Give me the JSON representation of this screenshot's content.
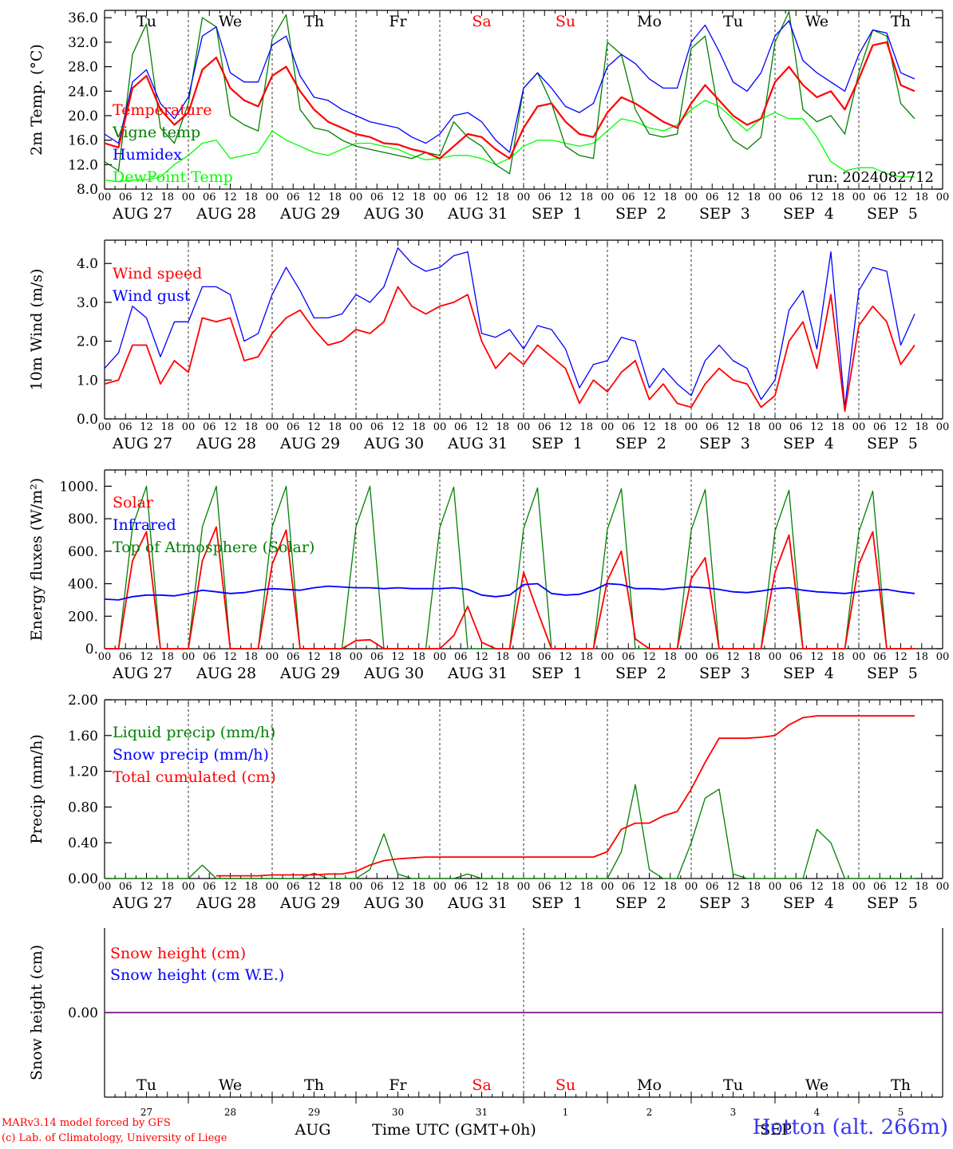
{
  "chart_data": [
    {
      "type": "line",
      "ylabel": "2m Temp. (°C)",
      "ylim": [
        8,
        37.2
      ],
      "yticks": [
        "8.0",
        "12.0",
        "16.0",
        "20.0",
        "24.0",
        "28.0",
        "32.0",
        "36.0"
      ],
      "hours_start": "2024-08-27 00 UTC",
      "x_step_hours": 6,
      "annotation": "run: 2024082712",
      "series": [
        {
          "name": "Temperature",
          "color": "#ff0000",
          "values": [
            15.5,
            14.8,
            24.5,
            26.5,
            21.0,
            18.5,
            20.5,
            27.5,
            29.5,
            24.5,
            22.5,
            21.5,
            26.5,
            28.0,
            24.0,
            21.0,
            19.0,
            18.0,
            17.0,
            16.5,
            15.5,
            15.3,
            14.5,
            14.0,
            13.0,
            15.0,
            17.0,
            16.5,
            14.5,
            13.0,
            18.0,
            21.5,
            22.0,
            19.0,
            17.0,
            16.5,
            20.5,
            23.0,
            22.0,
            20.5,
            19.0,
            18.0,
            22.0,
            25.0,
            22.5,
            20.0,
            18.5,
            19.5,
            25.5,
            28.0,
            25.0,
            23.0,
            24.0,
            21.0,
            26.0,
            31.5,
            32.0,
            25.0,
            24.0
          ]
        },
        {
          "name": "Vigne temp",
          "color": "#008000",
          "values": [
            12.5,
            11.0,
            30.0,
            35.0,
            18.0,
            15.5,
            22.0,
            36.0,
            34.5,
            20.0,
            18.5,
            17.5,
            32.5,
            36.5,
            21.0,
            18.0,
            17.5,
            16.0,
            15.0,
            14.5,
            14.0,
            13.5,
            13.0,
            14.0,
            13.5,
            19.0,
            16.5,
            15.0,
            12.0,
            10.5,
            24.5,
            27.0,
            22.0,
            15.0,
            13.5,
            13.0,
            32.0,
            30.0,
            21.0,
            17.0,
            16.5,
            17.0,
            31.0,
            33.0,
            20.0,
            16.0,
            14.5,
            16.5,
            32.0,
            37.0,
            21.0,
            19.0,
            20.0,
            17.0,
            27.0,
            34.0,
            33.0,
            22.0,
            19.5
          ]
        },
        {
          "name": "Humidex",
          "color": "#0000ff",
          "values": [
            17.0,
            15.5,
            25.5,
            27.5,
            22.0,
            19.5,
            23.0,
            33.0,
            34.5,
            27.0,
            25.5,
            25.5,
            31.5,
            33.0,
            26.5,
            23.0,
            22.5,
            21.0,
            20.0,
            19.0,
            18.5,
            18.0,
            16.5,
            15.5,
            17.0,
            20.0,
            20.5,
            19.0,
            16.0,
            14.0,
            24.5,
            27.0,
            24.5,
            21.5,
            20.5,
            22.0,
            28.0,
            30.0,
            28.5,
            26.0,
            24.5,
            24.5,
            32.0,
            34.8,
            30.5,
            25.5,
            24.0,
            27.0,
            33.0,
            35.5,
            29.0,
            27.0,
            25.5,
            24.0,
            30.0,
            34.0,
            33.5,
            27.0,
            26.0
          ]
        },
        {
          "name": "DewPoint Temp",
          "color": "#00ff00",
          "values": [
            9.5,
            9.2,
            9.5,
            9.5,
            10.0,
            12.0,
            13.5,
            15.5,
            16.0,
            13.0,
            13.5,
            14.0,
            17.5,
            16.0,
            15.0,
            14.0,
            13.5,
            14.5,
            15.5,
            15.5,
            15.0,
            14.5,
            13.5,
            12.8,
            13.0,
            13.5,
            13.5,
            13.0,
            12.0,
            13.0,
            15.0,
            16.0,
            16.0,
            15.5,
            15.0,
            15.5,
            17.5,
            19.5,
            19.0,
            18.0,
            17.5,
            18.5,
            21.0,
            22.5,
            21.5,
            19.5,
            17.5,
            19.5,
            20.5,
            19.5,
            19.5,
            16.5,
            12.5,
            11.0,
            11.5,
            11.5,
            10.5,
            10.0,
            10.0
          ]
        }
      ]
    },
    {
      "type": "line",
      "ylabel": "10m Wind (m/s)",
      "ylim": [
        0,
        4.6
      ],
      "yticks": [
        "0.0",
        "1.0",
        "2.0",
        "3.0",
        "4.0"
      ],
      "series": [
        {
          "name": "Wind speed",
          "color": "#ff0000",
          "values": [
            0.9,
            1.0,
            1.9,
            1.9,
            0.9,
            1.5,
            1.2,
            2.6,
            2.5,
            2.6,
            1.5,
            1.6,
            2.2,
            2.6,
            2.8,
            2.3,
            1.9,
            2.0,
            2.3,
            2.2,
            2.5,
            3.4,
            2.9,
            2.7,
            2.9,
            3.0,
            3.2,
            2.0,
            1.3,
            1.7,
            1.4,
            1.9,
            1.6,
            1.3,
            0.4,
            1.0,
            0.7,
            1.2,
            1.5,
            0.5,
            0.9,
            0.4,
            0.3,
            0.9,
            1.3,
            1.0,
            0.9,
            0.3,
            0.6,
            2.0,
            2.5,
            1.3,
            3.2,
            0.2,
            2.4,
            2.9,
            2.5,
            1.4,
            1.9
          ]
        },
        {
          "name": "Wind gust",
          "color": "#0000ff",
          "values": [
            1.3,
            1.7,
            2.9,
            2.6,
            1.6,
            2.5,
            2.5,
            3.4,
            3.4,
            3.2,
            2.0,
            2.2,
            3.2,
            3.9,
            3.3,
            2.6,
            2.6,
            2.7,
            3.2,
            3.0,
            3.4,
            4.4,
            4.0,
            3.8,
            3.9,
            4.2,
            4.3,
            2.2,
            2.1,
            2.3,
            1.8,
            2.4,
            2.3,
            1.8,
            0.8,
            1.4,
            1.5,
            2.1,
            2.0,
            0.8,
            1.3,
            0.9,
            0.6,
            1.5,
            1.9,
            1.5,
            1.3,
            0.5,
            1.0,
            2.8,
            3.3,
            1.8,
            4.3,
            0.3,
            3.3,
            3.9,
            3.8,
            1.9,
            2.7
          ]
        }
      ]
    },
    {
      "type": "line",
      "ylabel": "Energy fluxes (W/m²)",
      "ylim": [
        0,
        1100
      ],
      "yticks": [
        "0.",
        "200.",
        "400.",
        "600.",
        "800.",
        "1000."
      ],
      "series": [
        {
          "name": "Solar",
          "color": "#ff0000",
          "values": [
            0,
            0,
            540,
            720,
            0,
            0,
            0,
            540,
            750,
            0,
            0,
            0,
            520,
            730,
            0,
            0,
            0,
            0,
            50,
            55,
            0,
            0,
            0,
            0,
            0,
            80,
            260,
            40,
            0,
            0,
            470,
            230,
            0,
            0,
            0,
            0,
            420,
            600,
            60,
            0,
            0,
            0,
            430,
            560,
            0,
            0,
            0,
            0,
            470,
            700,
            0,
            0,
            0,
            0,
            520,
            720,
            0,
            0,
            0
          ]
        },
        {
          "name": "Infrared",
          "color": "#0000ff",
          "values": [
            305,
            300,
            320,
            330,
            330,
            325,
            340,
            360,
            350,
            340,
            345,
            360,
            370,
            365,
            360,
            375,
            385,
            380,
            375,
            375,
            370,
            375,
            370,
            370,
            370,
            375,
            365,
            330,
            320,
            330,
            395,
            400,
            340,
            330,
            335,
            360,
            400,
            395,
            370,
            370,
            365,
            375,
            380,
            375,
            365,
            350,
            345,
            355,
            370,
            375,
            360,
            350,
            345,
            340,
            350,
            360,
            365,
            350,
            340
          ]
        },
        {
          "name": "Top of Atmosphere (Solar)",
          "color": "#008000",
          "values": [
            0,
            0,
            750,
            1000,
            0,
            0,
            0,
            750,
            1000,
            0,
            0,
            0,
            750,
            1000,
            0,
            0,
            0,
            0,
            750,
            1000,
            0,
            0,
            0,
            0,
            745,
            995,
            0,
            0,
            0,
            0,
            740,
            990,
            0,
            0,
            0,
            0,
            735,
            985,
            0,
            0,
            0,
            0,
            730,
            980,
            0,
            0,
            0,
            0,
            725,
            975,
            0,
            0,
            0,
            0,
            720,
            970,
            0,
            0,
            0
          ]
        }
      ]
    },
    {
      "type": "line",
      "ylabel": "Precip (mm/h)",
      "ylim": [
        0,
        2.0
      ],
      "yticks": [
        "0.00",
        "0.40",
        "0.80",
        "1.20",
        "1.60",
        "2.00"
      ],
      "series": [
        {
          "name": "Liquid precip (mm/h)",
          "color": "#008000",
          "values": [
            0,
            0,
            0,
            0,
            0,
            0,
            0,
            0.15,
            0,
            0,
            0,
            0,
            0,
            0,
            0,
            0.06,
            0,
            0,
            0,
            0.1,
            0.5,
            0.05,
            0,
            0,
            0,
            0,
            0.05,
            0,
            0,
            0,
            0,
            0,
            0,
            0,
            0,
            0,
            0,
            0.3,
            1.05,
            0.1,
            0,
            0,
            0.4,
            0.9,
            1.0,
            0.05,
            0,
            0,
            0,
            0,
            0,
            0.55,
            0.4,
            0,
            0,
            0,
            0,
            0,
            0
          ]
        },
        {
          "name": "Snow precip (mm/h)",
          "color": "#0000ff",
          "values": [
            0,
            0,
            0,
            0,
            0,
            0,
            0,
            0,
            0,
            0,
            0,
            0,
            0,
            0,
            0,
            0,
            0,
            0,
            0,
            0,
            0,
            0,
            0,
            0,
            0,
            0,
            0,
            0,
            0,
            0,
            0,
            0,
            0,
            0,
            0,
            0,
            0,
            0,
            0,
            0,
            0,
            0,
            0,
            0,
            0,
            0,
            0,
            0,
            0,
            0,
            0,
            0,
            0,
            0,
            0,
            0,
            0,
            0,
            0
          ]
        },
        {
          "name": "Total cumulated (cm)",
          "color": "#ff0000",
          "values": [
            null,
            null,
            null,
            null,
            null,
            null,
            null,
            null,
            0.03,
            0.03,
            0.03,
            0.03,
            0.04,
            0.04,
            0.04,
            0.04,
            0.05,
            0.05,
            0.08,
            0.15,
            0.2,
            0.22,
            0.23,
            0.24,
            0.24,
            0.24,
            0.24,
            0.24,
            0.24,
            0.24,
            0.24,
            0.24,
            0.24,
            0.24,
            0.24,
            0.24,
            0.3,
            0.55,
            0.62,
            0.62,
            0.7,
            0.75,
            1.0,
            1.3,
            1.57,
            1.57,
            1.57,
            1.58,
            1.6,
            1.72,
            1.8,
            1.82,
            1.82,
            1.82,
            1.82,
            1.82,
            1.82,
            1.82,
            1.82
          ]
        }
      ]
    },
    {
      "type": "line",
      "ylabel": "Snow height (cm)",
      "ylim": [
        -1,
        1
      ],
      "yticks": [
        "0.00"
      ],
      "series": [
        {
          "name": "Snow height (cm)",
          "color": "#ff0000",
          "values": [
            0,
            0
          ]
        },
        {
          "name": "Snow height (cm W.E.)",
          "color": "#0000ff",
          "values": [
            0,
            0
          ]
        }
      ]
    }
  ],
  "hour_labels": [
    "00",
    "06",
    "12",
    "18"
  ],
  "date_labels": [
    "AUG 27",
    "AUG 28",
    "AUG 29",
    "AUG 30",
    "AUG 31",
    "SEP  1",
    "SEP  2",
    "SEP  3",
    "SEP  4",
    "SEP  5"
  ],
  "day_names": [
    {
      "text": "Tu",
      "color": "#000000"
    },
    {
      "text": "We",
      "color": "#000000"
    },
    {
      "text": "Th",
      "color": "#000000"
    },
    {
      "text": "Fr",
      "color": "#000000"
    },
    {
      "text": "Sa",
      "color": "#ff0000"
    },
    {
      "text": "Su",
      "color": "#ff0000"
    },
    {
      "text": "Mo",
      "color": "#000000"
    },
    {
      "text": "Tu",
      "color": "#000000"
    },
    {
      "text": "We",
      "color": "#000000"
    },
    {
      "text": "Th",
      "color": "#000000"
    }
  ],
  "day_numbers": [
    "27",
    "28",
    "29",
    "30",
    "31",
    "1",
    "2",
    "3",
    "4",
    "5"
  ],
  "bottom": {
    "month_aug": "AUG",
    "month_sep": "SEP",
    "axis_title": "Time UTC (GMT+0h)",
    "credit_line1": "MARv3.14 model forced by GFS",
    "credit_line2": "(c) Lab. of Climatology, University of Liege",
    "station": "Hotton (alt. 266m)"
  }
}
